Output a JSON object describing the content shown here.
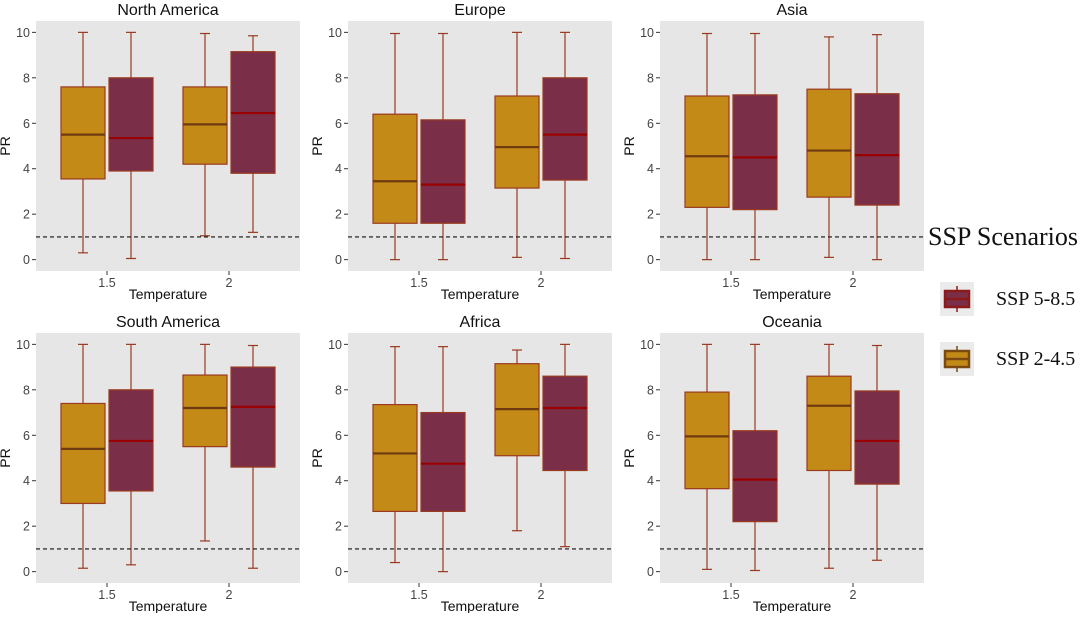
{
  "chart_data": {
    "type": "box",
    "ylabel": "PR",
    "xlabel": "Temperature",
    "categories": [
      "1.5",
      "2"
    ],
    "ylim": [
      -0.5,
      10.5
    ],
    "yticks": [
      "0",
      "2",
      "4",
      "6",
      "8",
      "10"
    ],
    "reference_line": {
      "y": 1,
      "style": "dashed"
    },
    "grid": false,
    "panel_background": "#e6e6e6",
    "legend": {
      "title": "SSP Scenarios",
      "position": "right",
      "items": [
        {
          "label": "SSP 5-8.5",
          "color": "#7b2e48",
          "border": "#8b1a1a"
        },
        {
          "label": "SSP 2-4.5",
          "color": "#c48a18",
          "border": "#7a4a10"
        }
      ]
    },
    "series_styles": {
      "SSP 2-4.5": {
        "fill": "#c48a18",
        "stroke": "#9a3a20",
        "median": "#6e3a10"
      },
      "SSP 5-8.5": {
        "fill": "#7b2e48",
        "stroke": "#9a3a20",
        "median": "#9a0000"
      }
    },
    "panels": [
      {
        "title": "North America",
        "boxes": [
          {
            "category": "1.5",
            "series": "SSP 2-4.5",
            "min": 0.3,
            "q1": 3.55,
            "median": 5.5,
            "q3": 7.6,
            "max": 10.0
          },
          {
            "category": "1.5",
            "series": "SSP 5-8.5",
            "min": 0.05,
            "q1": 3.9,
            "median": 5.35,
            "q3": 8.0,
            "max": 10.0
          },
          {
            "category": "2",
            "series": "SSP 2-4.5",
            "min": 1.05,
            "q1": 4.2,
            "median": 5.95,
            "q3": 7.6,
            "max": 9.95
          },
          {
            "category": "2",
            "series": "SSP 5-8.5",
            "min": 1.2,
            "q1": 3.8,
            "median": 6.45,
            "q3": 9.15,
            "max": 9.85
          }
        ]
      },
      {
        "title": "Europe",
        "boxes": [
          {
            "category": "1.5",
            "series": "SSP 2-4.5",
            "min": 0.0,
            "q1": 1.6,
            "median": 3.45,
            "q3": 6.4,
            "max": 9.95
          },
          {
            "category": "1.5",
            "series": "SSP 5-8.5",
            "min": 0.0,
            "q1": 1.6,
            "median": 3.3,
            "q3": 6.15,
            "max": 9.95
          },
          {
            "category": "2",
            "series": "SSP 2-4.5",
            "min": 0.1,
            "q1": 3.15,
            "median": 4.95,
            "q3": 7.2,
            "max": 10.0
          },
          {
            "category": "2",
            "series": "SSP 5-8.5",
            "min": 0.05,
            "q1": 3.5,
            "median": 5.5,
            "q3": 8.0,
            "max": 10.0
          }
        ]
      },
      {
        "title": "Asia",
        "boxes": [
          {
            "category": "1.5",
            "series": "SSP 2-4.5",
            "min": 0.0,
            "q1": 2.3,
            "median": 4.55,
            "q3": 7.2,
            "max": 9.95
          },
          {
            "category": "1.5",
            "series": "SSP 5-8.5",
            "min": 0.0,
            "q1": 2.2,
            "median": 4.5,
            "q3": 7.25,
            "max": 9.95
          },
          {
            "category": "2",
            "series": "SSP 2-4.5",
            "min": 0.1,
            "q1": 2.75,
            "median": 4.8,
            "q3": 7.5,
            "max": 9.8
          },
          {
            "category": "2",
            "series": "SSP 5-8.5",
            "min": 0.0,
            "q1": 2.4,
            "median": 4.6,
            "q3": 7.3,
            "max": 9.9
          }
        ]
      },
      {
        "title": "South America",
        "boxes": [
          {
            "category": "1.5",
            "series": "SSP 2-4.5",
            "min": 0.15,
            "q1": 3.0,
            "median": 5.4,
            "q3": 7.4,
            "max": 10.0
          },
          {
            "category": "1.5",
            "series": "SSP 5-8.5",
            "min": 0.3,
            "q1": 3.55,
            "median": 5.75,
            "q3": 8.0,
            "max": 10.0
          },
          {
            "category": "2",
            "series": "SSP 2-4.5",
            "min": 1.35,
            "q1": 5.5,
            "median": 7.2,
            "q3": 8.65,
            "max": 10.0
          },
          {
            "category": "2",
            "series": "SSP 5-8.5",
            "min": 0.15,
            "q1": 4.6,
            "median": 7.25,
            "q3": 9.0,
            "max": 9.95
          }
        ]
      },
      {
        "title": "Africa",
        "boxes": [
          {
            "category": "1.5",
            "series": "SSP 2-4.5",
            "min": 0.4,
            "q1": 2.65,
            "median": 5.2,
            "q3": 7.35,
            "max": 9.9
          },
          {
            "category": "1.5",
            "series": "SSP 5-8.5",
            "min": 0.0,
            "q1": 2.65,
            "median": 4.75,
            "q3": 7.0,
            "max": 9.9
          },
          {
            "category": "2",
            "series": "SSP 2-4.5",
            "min": 1.8,
            "q1": 5.1,
            "median": 7.15,
            "q3": 9.15,
            "max": 9.75
          },
          {
            "category": "2",
            "series": "SSP 5-8.5",
            "min": 1.1,
            "q1": 4.45,
            "median": 7.2,
            "q3": 8.6,
            "max": 10.0
          }
        ]
      },
      {
        "title": "Oceania",
        "boxes": [
          {
            "category": "1.5",
            "series": "SSP 2-4.5",
            "min": 0.1,
            "q1": 3.65,
            "median": 5.95,
            "q3": 7.9,
            "max": 10.0
          },
          {
            "category": "1.5",
            "series": "SSP 5-8.5",
            "min": 0.05,
            "q1": 2.2,
            "median": 4.05,
            "q3": 6.2,
            "max": 10.0
          },
          {
            "category": "2",
            "series": "SSP 2-4.5",
            "min": 0.15,
            "q1": 4.45,
            "median": 7.3,
            "q3": 8.6,
            "max": 10.0
          },
          {
            "category": "2",
            "series": "SSP 5-8.5",
            "min": 0.5,
            "q1": 3.85,
            "median": 5.75,
            "q3": 7.95,
            "max": 9.95
          }
        ]
      }
    ]
  }
}
